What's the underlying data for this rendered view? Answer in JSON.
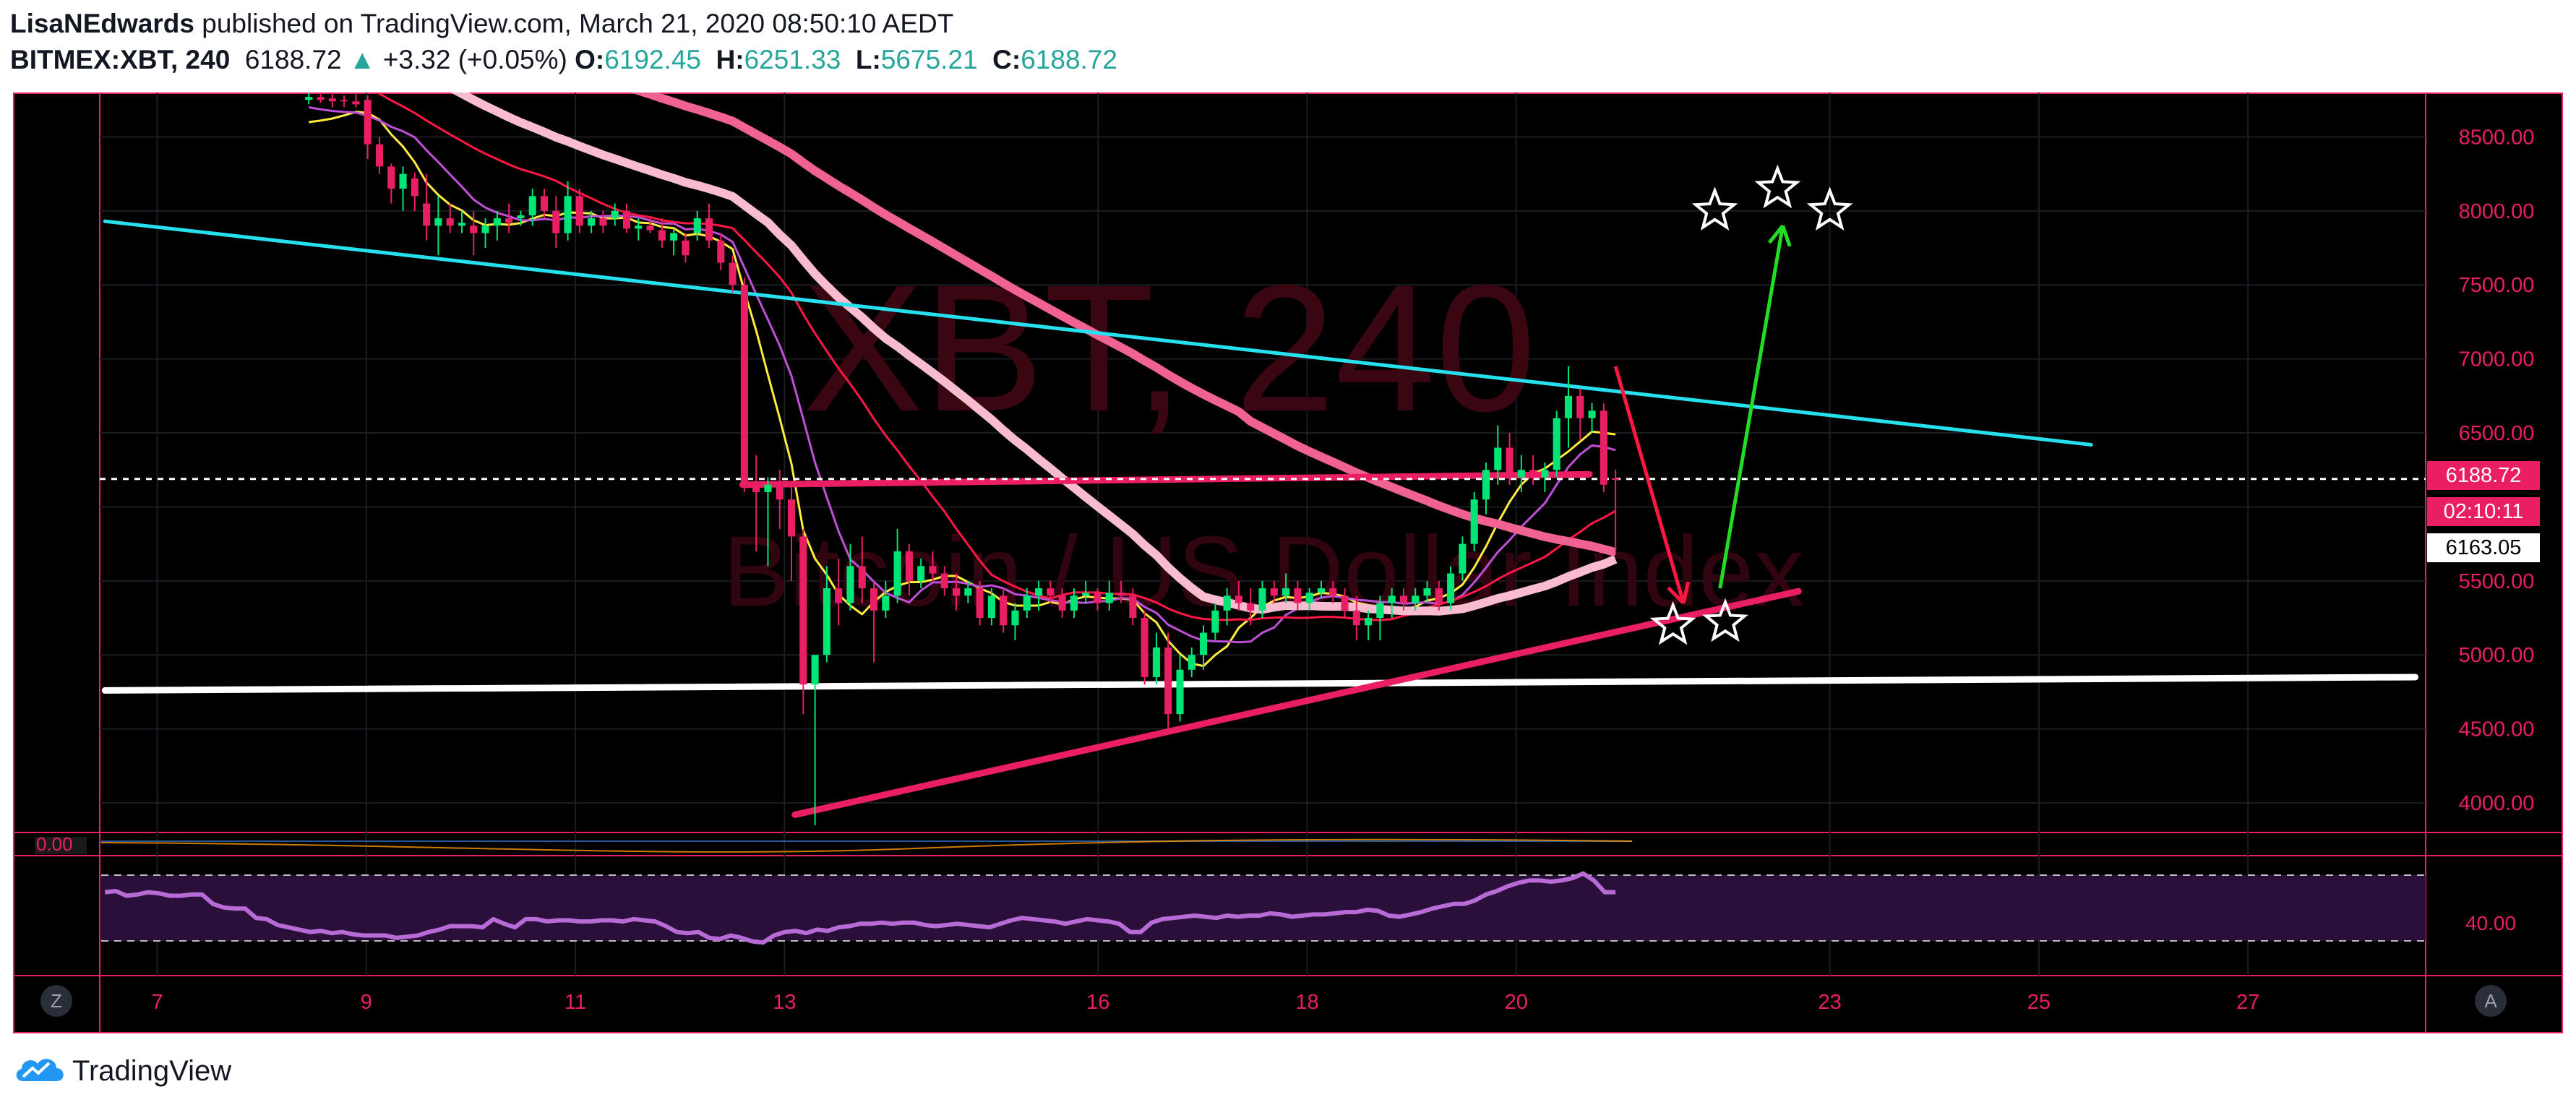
{
  "header": {
    "author": "LisaNEdwards",
    "published_text": "published on TradingView.com, March 21, 2020 08:50:10 AEDT",
    "symbol": "BITMEX:XBT, 240",
    "last_price": "6188.72",
    "change": "+3.32 (+0.05%)",
    "open_label": "O:",
    "open_value": "6192.45",
    "high_label": "H:",
    "high_value": "6251.33",
    "low_label": "L:",
    "low_value": "5675.21",
    "close_label": "C:",
    "close_value": "6188.72"
  },
  "watermark": {
    "symbol": "XBT, 240",
    "description": "Bitcoin / US Dollar Index"
  },
  "price_badges": {
    "last": "6188.72",
    "countdown": "02:10:11",
    "marker": "6163.05"
  },
  "oscillator_top_label": "0.00",
  "oscillator_bottom_label": "40.00",
  "scale_buttons": {
    "left": "Z",
    "right": "A"
  },
  "footer": {
    "brand": "TradingView"
  },
  "colors": {
    "up": "#00e676",
    "down": "#e91e63",
    "axis_text": "#e91e63",
    "border": "#e91e63",
    "cyan_line": "#26e0ee",
    "support_white": "#ffffff",
    "pink_trend": "#e91e63",
    "ma_light_pink": "#f8bbd0",
    "ma_deep_pink": "#f06292",
    "ma_magenta": "#c04fd8",
    "ma_red": "#ff1744",
    "ma_yellow": "#ffeb3b",
    "rsi": "#b86bd6",
    "arrow_up": "#22dd22",
    "arrow_down": "#ff1744"
  },
  "chart_data": {
    "type": "candlestick",
    "title": "BITMEX:XBT, 240",
    "xlabel": "",
    "ylabel": "",
    "x_ticks": [
      "7",
      "9",
      "11",
      "13",
      "16",
      "18",
      "20",
      "23",
      "25",
      "27"
    ],
    "x_tick_day": [
      7,
      9,
      11,
      13,
      16,
      18,
      20,
      23,
      25,
      27
    ],
    "y_ticks": [
      4000,
      4500,
      5000,
      5500,
      6000,
      6500,
      7000,
      7500,
      8000,
      8500
    ],
    "y_tick_labels": [
      "4000.00",
      "4500.00",
      "5000.00",
      "5500.00",
      "6000.00",
      "6500.00",
      "7000.00",
      "7500.00",
      "8000.00",
      "8500.00"
    ],
    "ylim": [
      3800,
      8800
    ],
    "xlim": [
      6.45,
      28.7
    ],
    "grid": true,
    "candles_ohlc": [
      [
        8750,
        8800,
        8720,
        8770
      ],
      [
        8770,
        8800,
        8730,
        8750
      ],
      [
        8760,
        8800,
        8700,
        8740
      ],
      [
        8750,
        8780,
        8700,
        8740
      ],
      [
        8740,
        8800,
        8700,
        8720
      ],
      [
        8750,
        8780,
        8350,
        8450
      ],
      [
        8450,
        8500,
        8250,
        8300
      ],
      [
        8300,
        8320,
        8050,
        8150
      ],
      [
        8150,
        8300,
        8000,
        8250
      ],
      [
        8220,
        8260,
        8000,
        8100
      ],
      [
        8050,
        8250,
        7800,
        7900
      ],
      [
        7900,
        8100,
        7700,
        7950
      ],
      [
        7950,
        8050,
        7850,
        7900
      ],
      [
        7900,
        8000,
        7850,
        7920
      ],
      [
        7900,
        8000,
        7700,
        7850
      ],
      [
        7850,
        7950,
        7750,
        7900
      ],
      [
        7900,
        8000,
        7800,
        7950
      ],
      [
        7950,
        8050,
        7850,
        7920
      ],
      [
        7950,
        8000,
        7900,
        7970
      ],
      [
        7970,
        8150,
        7900,
        8100
      ],
      [
        8100,
        8150,
        7950,
        8000
      ],
      [
        8000,
        8100,
        7750,
        7850
      ],
      [
        7850,
        8200,
        7800,
        8100
      ],
      [
        8100,
        8150,
        7850,
        7900
      ],
      [
        7900,
        8000,
        7850,
        7950
      ],
      [
        7950,
        8000,
        7850,
        7900
      ],
      [
        7950,
        8050,
        7900,
        8000
      ],
      [
        8000,
        8050,
        7850,
        7880
      ],
      [
        7880,
        7950,
        7800,
        7900
      ],
      [
        7900,
        7950,
        7850,
        7870
      ],
      [
        7870,
        7950,
        7750,
        7800
      ],
      [
        7800,
        7880,
        7700,
        7850
      ],
      [
        7800,
        7850,
        7650,
        7700
      ],
      [
        7850,
        8000,
        7800,
        7950
      ],
      [
        7950,
        8050,
        7750,
        7800
      ],
      [
        7800,
        7850,
        7600,
        7650
      ],
      [
        7650,
        7700,
        7450,
        7500
      ],
      [
        7500,
        7550,
        6100,
        6150
      ],
      [
        6150,
        6350,
        5700,
        6100
      ],
      [
        6100,
        6200,
        5600,
        6150
      ],
      [
        6150,
        6250,
        5850,
        6050
      ],
      [
        6050,
        6150,
        5500,
        5800
      ],
      [
        5800,
        5850,
        4600,
        4800
      ],
      [
        4800,
        4900,
        3850,
        5000
      ],
      [
        5000,
        5600,
        4950,
        5450
      ],
      [
        5450,
        5650,
        5200,
        5350
      ],
      [
        5350,
        5750,
        5300,
        5600
      ],
      [
        5600,
        5800,
        5350,
        5450
      ],
      [
        5450,
        5500,
        4950,
        5300
      ],
      [
        5300,
        5500,
        5250,
        5400
      ],
      [
        5400,
        5850,
        5350,
        5700
      ],
      [
        5700,
        5750,
        5400,
        5500
      ],
      [
        5500,
        5650,
        5450,
        5600
      ],
      [
        5600,
        5700,
        5500,
        5550
      ],
      [
        5550,
        5600,
        5400,
        5450
      ],
      [
        5450,
        5550,
        5300,
        5400
      ],
      [
        5400,
        5500,
        5350,
        5450
      ],
      [
        5450,
        5500,
        5200,
        5250
      ],
      [
        5250,
        5450,
        5200,
        5400
      ],
      [
        5400,
        5450,
        5150,
        5200
      ],
      [
        5200,
        5350,
        5100,
        5300
      ],
      [
        5300,
        5450,
        5250,
        5400
      ],
      [
        5400,
        5500,
        5300,
        5450
      ],
      [
        5450,
        5500,
        5350,
        5400
      ],
      [
        5400,
        5450,
        5250,
        5300
      ],
      [
        5300,
        5450,
        5250,
        5400
      ],
      [
        5400,
        5500,
        5350,
        5420
      ],
      [
        5420,
        5450,
        5300,
        5350
      ],
      [
        5350,
        5500,
        5300,
        5420
      ],
      [
        5420,
        5500,
        5350,
        5400
      ],
      [
        5400,
        5450,
        5200,
        5250
      ],
      [
        5250,
        5300,
        4800,
        4850
      ],
      [
        4850,
        5150,
        4800,
        5050
      ],
      [
        5050,
        5150,
        4500,
        4600
      ],
      [
        4600,
        5000,
        4550,
        4900
      ],
      [
        4900,
        5050,
        4850,
        5000
      ],
      [
        5000,
        5200,
        4900,
        5150
      ],
      [
        5150,
        5350,
        5100,
        5300
      ],
      [
        5300,
        5450,
        5200,
        5400
      ],
      [
        5400,
        5500,
        5300,
        5350
      ],
      [
        5350,
        5450,
        5200,
        5300
      ],
      [
        5300,
        5500,
        5250,
        5450
      ],
      [
        5450,
        5500,
        5350,
        5400
      ],
      [
        5400,
        5550,
        5350,
        5450
      ],
      [
        5450,
        5500,
        5300,
        5350
      ],
      [
        5350,
        5450,
        5300,
        5420
      ],
      [
        5420,
        5500,
        5380,
        5450
      ],
      [
        5450,
        5500,
        5350,
        5400
      ],
      [
        5400,
        5450,
        5250,
        5300
      ],
      [
        5300,
        5400,
        5100,
        5200
      ],
      [
        5200,
        5300,
        5100,
        5250
      ],
      [
        5250,
        5400,
        5100,
        5350
      ],
      [
        5350,
        5450,
        5250,
        5400
      ],
      [
        5400,
        5450,
        5300,
        5350
      ],
      [
        5350,
        5450,
        5300,
        5400
      ],
      [
        5400,
        5500,
        5350,
        5450
      ],
      [
        5450,
        5500,
        5300,
        5350
      ],
      [
        5350,
        5600,
        5300,
        5550
      ],
      [
        5550,
        5800,
        5500,
        5750
      ],
      [
        5750,
        6100,
        5700,
        6050
      ],
      [
        6050,
        6300,
        5950,
        6250
      ],
      [
        6250,
        6550,
        6150,
        6400
      ],
      [
        6400,
        6500,
        6150,
        6200
      ],
      [
        6200,
        6350,
        6100,
        6250
      ],
      [
        6250,
        6350,
        6150,
        6200
      ],
      [
        6200,
        6300,
        6100,
        6250
      ],
      [
        6250,
        6650,
        6200,
        6600
      ],
      [
        6600,
        6950,
        6400,
        6750
      ],
      [
        6750,
        6800,
        6450,
        6600
      ],
      [
        6600,
        6700,
        6500,
        6650
      ],
      [
        6650,
        6700,
        6100,
        6150
      ],
      [
        6192.45,
        6251.33,
        5675.21,
        6188.72
      ]
    ],
    "trend_lines": [
      {
        "name": "cyan",
        "points": [
          [
            6.5,
            7930
          ],
          [
            25.5,
            6420
          ]
        ]
      },
      {
        "name": "white_support",
        "points": [
          [
            6.5,
            4760
          ],
          [
            28.6,
            4850
          ]
        ]
      },
      {
        "name": "pink_rising",
        "points": [
          [
            13.1,
            3920
          ],
          [
            22.7,
            5430
          ]
        ]
      },
      {
        "name": "pink_horizontal",
        "points": [
          [
            12.6,
            6150
          ],
          [
            20.7,
            6220
          ]
        ]
      }
    ],
    "dashed_level": 6188.72,
    "arrows": [
      {
        "color": "down",
        "from": [
          20.95,
          6950
        ],
        "to": [
          21.6,
          5350
        ]
      },
      {
        "color": "up",
        "from": [
          21.95,
          5450
        ],
        "to": [
          22.55,
          7900
        ]
      }
    ],
    "stars": [
      [
        21.5,
        5200
      ],
      [
        22.0,
        5220
      ],
      [
        21.9,
        8000
      ],
      [
        22.5,
        8150
      ],
      [
        23.0,
        8000
      ]
    ],
    "rsi": {
      "range": [
        0,
        100
      ],
      "levels": [
        70,
        30
      ],
      "values": [
        70,
        71,
        67,
        68,
        70,
        69,
        67,
        67,
        68,
        68,
        60,
        57,
        56,
        56,
        48,
        47,
        42,
        40,
        38,
        36,
        37,
        35,
        36,
        34,
        33,
        33,
        33,
        31,
        32,
        33,
        36,
        38,
        41,
        41,
        41,
        40,
        47,
        43,
        40,
        47,
        47,
        45,
        46,
        46,
        45,
        45,
        46,
        46,
        45,
        47,
        46,
        45,
        41,
        36,
        35,
        36,
        31,
        30,
        33,
        31,
        28,
        27,
        33,
        36,
        37,
        35,
        38,
        37,
        40,
        41,
        43,
        43,
        44,
        43,
        44,
        44,
        42,
        41,
        42,
        43,
        42,
        41,
        40,
        43,
        46,
        48,
        47,
        46,
        45,
        43,
        45,
        47,
        46,
        45,
        43,
        36,
        36,
        44,
        47,
        48,
        49,
        50,
        49,
        48,
        50,
        49,
        50,
        50,
        52,
        51,
        49,
        50,
        51,
        51,
        52,
        53,
        53,
        55,
        54,
        50,
        49,
        51,
        53,
        56,
        58,
        60,
        60,
        63,
        68,
        71,
        75,
        78,
        80,
        80,
        79,
        80,
        82,
        86,
        80,
        70,
        70
      ]
    }
  }
}
